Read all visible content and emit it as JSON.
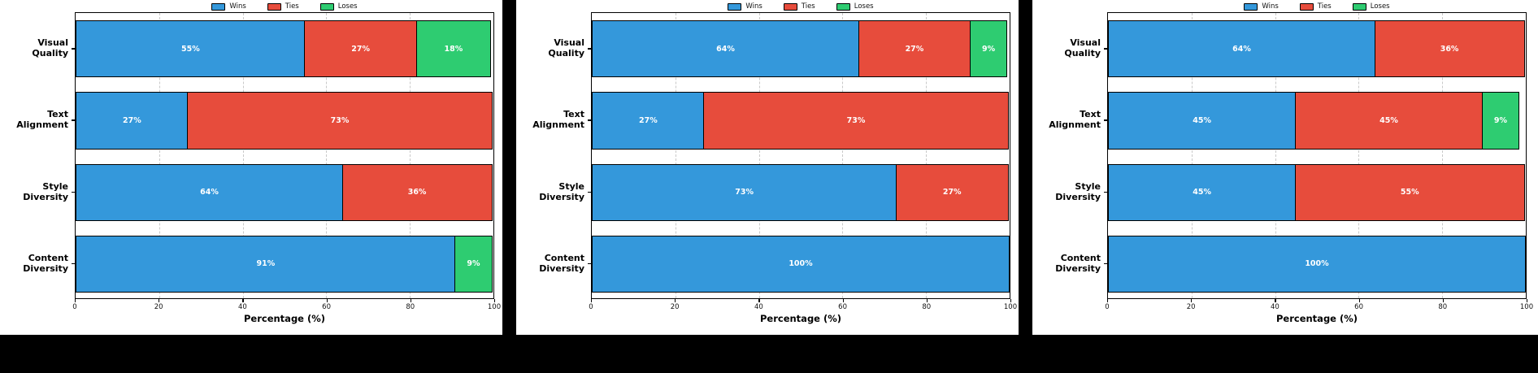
{
  "colors": {
    "wins": "#3498db",
    "ties": "#e74c3c",
    "loses": "#2ecc71",
    "bar_edge": "#000000",
    "background": "#000000",
    "panel_background": "#ffffff",
    "gridline": "#c9c9c9"
  },
  "legend": {
    "labels": [
      "Wins",
      "Ties",
      "Loses"
    ],
    "position": "top center"
  },
  "chart_data": [
    {
      "type": "bar",
      "orientation": "horizontal_stacked",
      "title": "",
      "xlabel": "Percentage (%)",
      "xlim": [
        0,
        100
      ],
      "xticks": [
        0,
        20,
        40,
        60,
        80,
        100
      ],
      "grid": "vertical dashed at 20/40/60/80",
      "legend_position": "top center",
      "categories": [
        "Visual Quality",
        "Text Alignment",
        "Style Diversity",
        "Content Diversity"
      ],
      "series": [
        {
          "name": "Wins",
          "color": "#3498db",
          "values": [
            55,
            27,
            64,
            91
          ]
        },
        {
          "name": "Ties",
          "color": "#e74c3c",
          "values": [
            27,
            73,
            36,
            0
          ]
        },
        {
          "name": "Loses",
          "color": "#2ecc71",
          "values": [
            18,
            0,
            0,
            9
          ]
        }
      ],
      "bar_labels": [
        [
          "55%",
          "27%",
          "18%"
        ],
        [
          "27%",
          "73%"
        ],
        [
          "64%",
          "36%"
        ],
        [
          "91%",
          "9%"
        ]
      ]
    },
    {
      "type": "bar",
      "orientation": "horizontal_stacked",
      "title": "",
      "xlabel": "Percentage (%)",
      "xlim": [
        0,
        100
      ],
      "xticks": [
        0,
        20,
        40,
        60,
        80,
        100
      ],
      "grid": "vertical dashed at 20/40/60/80",
      "legend_position": "top center",
      "categories": [
        "Visual Quality",
        "Text Alignment",
        "Style Diversity",
        "Content Diversity"
      ],
      "series": [
        {
          "name": "Wins",
          "color": "#3498db",
          "values": [
            64,
            27,
            73,
            100
          ]
        },
        {
          "name": "Ties",
          "color": "#e74c3c",
          "values": [
            27,
            73,
            27,
            0
          ]
        },
        {
          "name": "Loses",
          "color": "#2ecc71",
          "values": [
            9,
            0,
            0,
            0
          ]
        }
      ],
      "bar_labels": [
        [
          "64%",
          "27%",
          "9%"
        ],
        [
          "27%",
          "73%"
        ],
        [
          "73%",
          "27%"
        ],
        [
          "100%"
        ]
      ]
    },
    {
      "type": "bar",
      "orientation": "horizontal_stacked",
      "title": "",
      "xlabel": "Percentage (%)",
      "xlim": [
        0,
        100
      ],
      "xticks": [
        0,
        20,
        40,
        60,
        80,
        100
      ],
      "grid": "vertical dashed at 20/40/60/80",
      "legend_position": "top center",
      "categories": [
        "Visual Quality",
        "Text Alignment",
        "Style Diversity",
        "Content Diversity"
      ],
      "series": [
        {
          "name": "Wins",
          "color": "#3498db",
          "values": [
            64,
            45,
            45,
            100
          ]
        },
        {
          "name": "Ties",
          "color": "#e74c3c",
          "values": [
            36,
            45,
            55,
            0
          ]
        },
        {
          "name": "Loses",
          "color": "#2ecc71",
          "values": [
            0,
            9,
            0,
            0
          ]
        }
      ],
      "bar_labels": [
        [
          "64%",
          "36%"
        ],
        [
          "45%",
          "45%",
          "9%"
        ],
        [
          "45%",
          "55%"
        ],
        [
          "100%"
        ]
      ]
    }
  ]
}
